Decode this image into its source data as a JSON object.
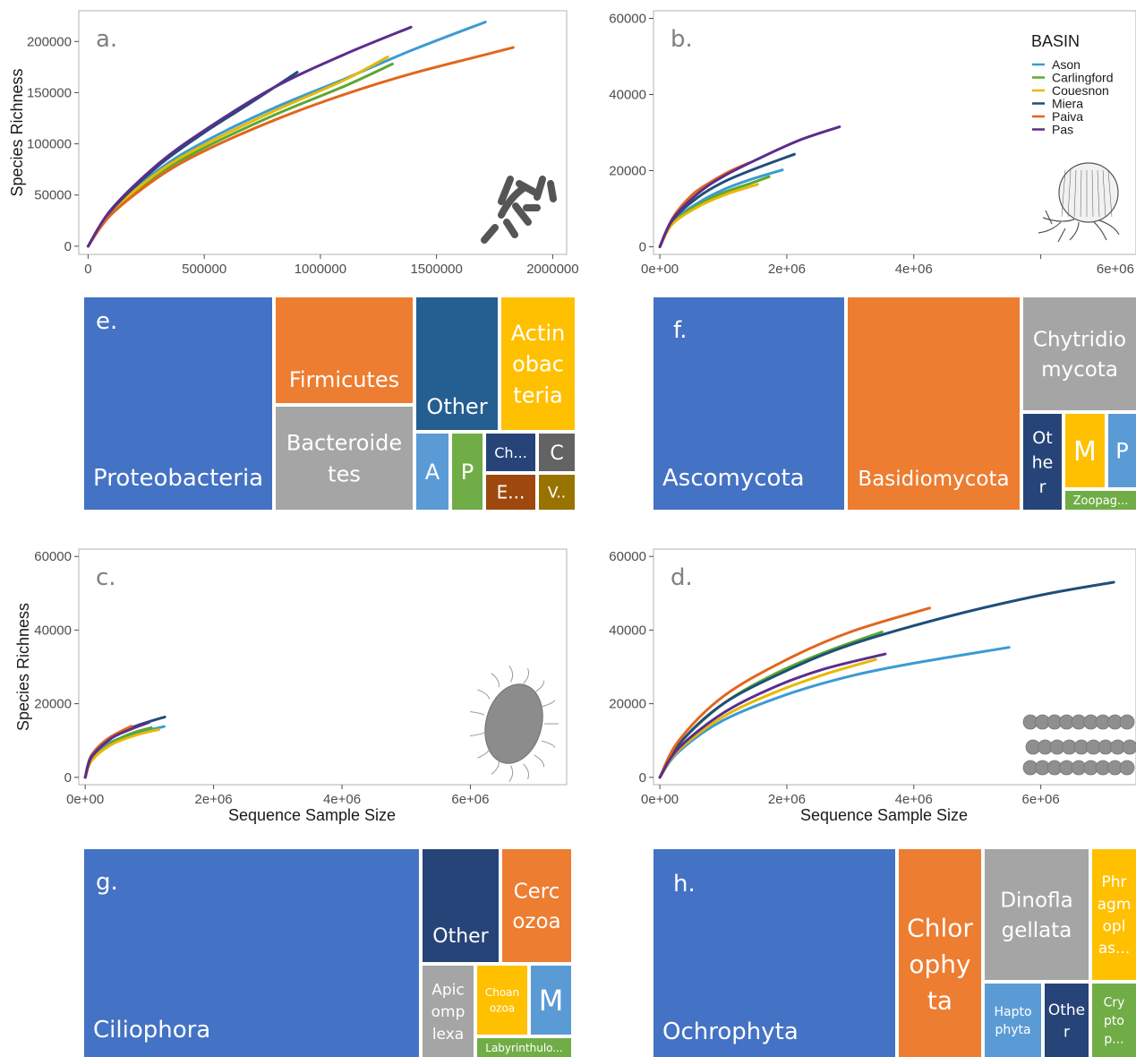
{
  "colors": {
    "Ason": "#3c9bd3",
    "Carlingford": "#5aa832",
    "Couesnon": "#e8b800",
    "Miera": "#1f4e79",
    "Paiva": "#e2661d",
    "Pas": "#5b2d8e",
    "tm_blue": "#4472c4",
    "tm_orange": "#ed7d31",
    "tm_gray": "#a5a5a5",
    "tm_yellow": "#ffc000",
    "tm_lightblue": "#5b9bd5",
    "tm_green": "#70ad47",
    "tm_navy": "#264478",
    "tm_darkblue": "#255e91",
    "tm_darkgray": "#636363",
    "tm_brown": "#9e480e",
    "tm_olive": "#997300"
  },
  "icons": [
    "bacteria-rods-icon",
    "fungus-sporangium-icon",
    "ciliate-icon",
    "diatom-chain-icon"
  ],
  "chart_data": [
    {
      "type": "line",
      "panel": "a.",
      "xlabel": "",
      "ylabel": "Species Richness",
      "xlim": [
        -40000,
        2060000
      ],
      "ylim": [
        -8000,
        230000
      ],
      "xticks": [
        0,
        500000,
        1000000,
        1500000,
        2000000
      ],
      "xtick_labels": [
        "0",
        "500000",
        "1000000",
        "1500000",
        "2000000"
      ],
      "yticks": [
        0,
        50000,
        100000,
        150000,
        200000
      ],
      "ytick_labels": [
        "0",
        "50000",
        "100000",
        "150000",
        "200000"
      ],
      "grid": false,
      "series": [
        {
          "name": "Ason",
          "x": [
            0,
            100000,
            300000,
            500000,
            800000,
            1100000,
            1400000,
            1710000
          ],
          "y": [
            0,
            34000,
            74000,
            102000,
            135000,
            163000,
            192000,
            219000
          ]
        },
        {
          "name": "Carlingford",
          "x": [
            0,
            100000,
            300000,
            500000,
            800000,
            1100000,
            1310000
          ],
          "y": [
            0,
            32000,
            70000,
            96000,
            128000,
            156000,
            178000
          ]
        },
        {
          "name": "Couesnon",
          "x": [
            0,
            100000,
            300000,
            500000,
            800000,
            1100000,
            1290000
          ],
          "y": [
            0,
            33000,
            72000,
            99000,
            132000,
            162000,
            185000
          ]
        },
        {
          "name": "Miera",
          "x": [
            0,
            100000,
            300000,
            500000,
            700000,
            900000
          ],
          "y": [
            0,
            35000,
            78000,
            111000,
            140000,
            170000
          ]
        },
        {
          "name": "Paiva",
          "x": [
            0,
            100000,
            300000,
            500000,
            800000,
            1100000,
            1400000,
            1830000
          ],
          "y": [
            0,
            31000,
            67000,
            93000,
            123000,
            148000,
            169000,
            194000
          ]
        },
        {
          "name": "Pas",
          "x": [
            0,
            100000,
            300000,
            500000,
            800000,
            1100000,
            1390000
          ],
          "y": [
            0,
            36000,
            80000,
            113000,
            155000,
            187000,
            214000
          ]
        }
      ]
    },
    {
      "type": "line",
      "panel": "b.",
      "xlabel": "",
      "ylabel": "",
      "xlim": [
        -100000,
        7500000
      ],
      "ylim": [
        -2000,
        62000
      ],
      "xticks": [
        0,
        2000000,
        4000000,
        6000000
      ],
      "xtick_labels": [
        "0e+00",
        "2e+06",
        "4e+06",
        "6e+06"
      ],
      "yticks": [
        0,
        20000,
        40000,
        60000
      ],
      "ytick_labels": [
        "0",
        "20000",
        "40000",
        "60000"
      ],
      "grid": false,
      "legend": {
        "title": "BASIN",
        "position": "top-right"
      },
      "series": [
        {
          "name": "Ason",
          "x": [
            0,
            200000,
            600000,
            1000000,
            1400000,
            1930000
          ],
          "y": [
            0,
            6500,
            11500,
            15000,
            17500,
            20200
          ]
        },
        {
          "name": "Carlingford",
          "x": [
            0,
            200000,
            600000,
            1000000,
            1400000,
            1720000
          ],
          "y": [
            0,
            6200,
            11000,
            14200,
            16500,
            18400
          ]
        },
        {
          "name": "Couesnon",
          "x": [
            0,
            200000,
            600000,
            1000000,
            1300000,
            1540000
          ],
          "y": [
            0,
            6000,
            10500,
            13500,
            15200,
            16400
          ]
        },
        {
          "name": "Miera",
          "x": [
            0,
            200000,
            600000,
            1000000,
            1500000,
            2120000
          ],
          "y": [
            0,
            7000,
            13000,
            17000,
            20500,
            24300
          ]
        },
        {
          "name": "Paiva",
          "x": [
            0,
            200000,
            500000,
            800000,
            1100000,
            1400000
          ],
          "y": [
            0,
            7500,
            13500,
            17000,
            19800,
            22000
          ]
        },
        {
          "name": "Pas",
          "x": [
            0,
            200000,
            600000,
            1000000,
            1600000,
            2200000,
            2830000
          ],
          "y": [
            0,
            7200,
            14000,
            18500,
            23500,
            28000,
            31500
          ]
        }
      ]
    },
    {
      "type": "line",
      "panel": "c.",
      "xlabel": "Sequence Sample Size",
      "ylabel": "Species Richness",
      "xlim": [
        -100000,
        7500000
      ],
      "ylim": [
        -2000,
        62000
      ],
      "xticks": [
        0,
        2000000,
        4000000,
        6000000
      ],
      "xtick_labels": [
        "0e+00",
        "2e+06",
        "4e+06",
        "6e+06"
      ],
      "yticks": [
        0,
        20000,
        40000,
        60000
      ],
      "ytick_labels": [
        "0",
        "20000",
        "40000",
        "60000"
      ],
      "grid": false,
      "series": [
        {
          "name": "Ason",
          "x": [
            0,
            100000,
            400000,
            800000,
            1230000
          ],
          "y": [
            0,
            5000,
            9500,
            12000,
            13800
          ]
        },
        {
          "name": "Carlingford",
          "x": [
            0,
            100000,
            400000,
            700000,
            1030000
          ],
          "y": [
            0,
            4800,
            9200,
            11800,
            13500
          ]
        },
        {
          "name": "Couesnon",
          "x": [
            0,
            100000,
            400000,
            800000,
            1150000
          ],
          "y": [
            0,
            4500,
            8800,
            11500,
            13000
          ]
        },
        {
          "name": "Miera",
          "x": [
            0,
            100000,
            400000,
            800000,
            1240000
          ],
          "y": [
            0,
            6000,
            11000,
            14000,
            16400
          ]
        },
        {
          "name": "Paiva",
          "x": [
            0,
            100000,
            300000,
            500000,
            720000
          ],
          "y": [
            0,
            5800,
            9800,
            12000,
            13900
          ]
        },
        {
          "name": "Pas",
          "x": [
            0,
            100000,
            400000,
            700000,
            990000
          ],
          "y": [
            0,
            5500,
            10500,
            13000,
            14900
          ]
        }
      ]
    },
    {
      "type": "line",
      "panel": "d.",
      "xlabel": "Sequence Sample Size",
      "ylabel": "",
      "xlim": [
        -100000,
        7500000
      ],
      "ylim": [
        -2000,
        62000
      ],
      "xticks": [
        0,
        2000000,
        4000000,
        6000000
      ],
      "xtick_labels": [
        "0e+00",
        "2e+06",
        "4e+06",
        "6e+06"
      ],
      "yticks": [
        0,
        20000,
        40000,
        60000
      ],
      "ytick_labels": [
        "0",
        "20000",
        "40000",
        "60000"
      ],
      "grid": false,
      "series": [
        {
          "name": "Ason",
          "x": [
            0,
            300000,
            1000000,
            2000000,
            3000000,
            4000000,
            5500000
          ],
          "y": [
            0,
            7000,
            15500,
            22500,
            27500,
            31000,
            35300
          ]
        },
        {
          "name": "Carlingford",
          "x": [
            0,
            300000,
            1000000,
            1800000,
            2600000,
            3500000
          ],
          "y": [
            0,
            9000,
            20000,
            28000,
            34000,
            39500
          ]
        },
        {
          "name": "Couesnon",
          "x": [
            0,
            300000,
            1000000,
            1800000,
            2600000,
            3400000
          ],
          "y": [
            0,
            7500,
            16500,
            23000,
            28000,
            32000
          ]
        },
        {
          "name": "Miera",
          "x": [
            0,
            300000,
            1000000,
            2000000,
            3000000,
            4500000,
            6000000,
            7150000
          ],
          "y": [
            0,
            9000,
            20000,
            29000,
            36000,
            43500,
            49500,
            53000
          ]
        },
        {
          "name": "Paiva",
          "x": [
            0,
            300000,
            1000000,
            2000000,
            3000000,
            4250000
          ],
          "y": [
            0,
            10000,
            22000,
            32000,
            39500,
            46000
          ]
        },
        {
          "name": "Pas",
          "x": [
            0,
            300000,
            1000000,
            1800000,
            2600000,
            3550000
          ],
          "y": [
            0,
            8000,
            17500,
            24500,
            29500,
            33500
          ]
        }
      ]
    }
  ],
  "treemaps": [
    {
      "panel": "e.",
      "tiles": [
        {
          "label": "Proteobacteria",
          "color": "tm_blue"
        },
        {
          "label": "Firmicutes",
          "color": "tm_orange"
        },
        {
          "label": "Bacteroide tes",
          "color": "tm_gray"
        },
        {
          "label": "Other",
          "color": "tm_darkblue"
        },
        {
          "label": "Actin obac teria",
          "color": "tm_yellow"
        },
        {
          "label": "A",
          "color": "tm_lightblue"
        },
        {
          "label": "P",
          "color": "tm_green"
        },
        {
          "label": "Ch...",
          "color": "tm_navy"
        },
        {
          "label": "C",
          "color": "tm_darkgray"
        },
        {
          "label": "E...",
          "color": "tm_brown"
        },
        {
          "label": "V..",
          "color": "tm_olive"
        }
      ]
    },
    {
      "panel": "f.",
      "tiles": [
        {
          "label": "Ascomycota",
          "color": "tm_blue"
        },
        {
          "label": "Basidiomycota",
          "color": "tm_orange"
        },
        {
          "label": "Chytridio mycota",
          "color": "tm_gray"
        },
        {
          "label": "Ot he r",
          "color": "tm_navy"
        },
        {
          "label": "M",
          "color": "tm_yellow"
        },
        {
          "label": "P",
          "color": "tm_lightblue"
        },
        {
          "label": "Zoopag...",
          "color": "tm_green"
        }
      ]
    },
    {
      "panel": "g.",
      "tiles": [
        {
          "label": "Ciliophora",
          "color": "tm_blue"
        },
        {
          "label": "Other",
          "color": "tm_navy"
        },
        {
          "label": "Cerc ozoa",
          "color": "tm_orange"
        },
        {
          "label": "Apic omp lexa",
          "color": "tm_gray"
        },
        {
          "label": "Choan ozoa",
          "color": "tm_yellow"
        },
        {
          "label": "M",
          "color": "tm_lightblue"
        },
        {
          "label": "Labyrinthulo...",
          "color": "tm_green"
        }
      ]
    },
    {
      "panel": "h.",
      "tiles": [
        {
          "label": "Ochrophyta",
          "color": "tm_blue"
        },
        {
          "label": "Chlor ophy ta",
          "color": "tm_orange"
        },
        {
          "label": "Dinofla gellata",
          "color": "tm_gray"
        },
        {
          "label": "Phr agm opl as...",
          "color": "tm_yellow"
        },
        {
          "label": "Hapto phyta",
          "color": "tm_lightblue"
        },
        {
          "label": "Othe r",
          "color": "tm_navy"
        },
        {
          "label": "Cry pto p...",
          "color": "tm_green"
        }
      ]
    }
  ]
}
